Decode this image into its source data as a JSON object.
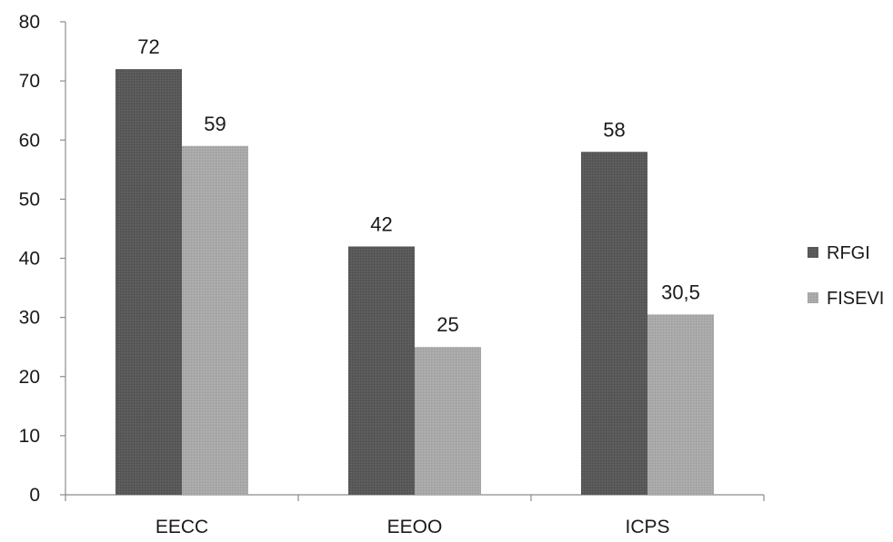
{
  "chart_data": {
    "type": "bar",
    "title": "",
    "xlabel": "",
    "ylabel": "",
    "categories": [
      "EECC",
      "EEOO",
      "ICPS"
    ],
    "series": [
      {
        "name": "RFGI",
        "values": [
          72,
          42,
          58
        ],
        "labels": [
          "72",
          "42",
          "58"
        ],
        "color": "#595959"
      },
      {
        "name": "FISEVI",
        "values": [
          59,
          25,
          30.5
        ],
        "labels": [
          "59",
          "25",
          "30,5"
        ],
        "color": "#a6a6a6"
      }
    ],
    "ylim": [
      0,
      80
    ],
    "yticks": [
      0,
      10,
      20,
      30,
      40,
      50,
      60,
      70,
      80
    ],
    "grid": false,
    "legend_position": "right"
  }
}
